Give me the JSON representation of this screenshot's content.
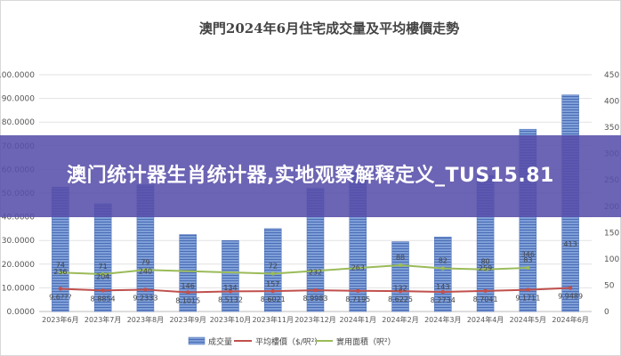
{
  "overlay": {
    "text": "澳门统计器生肖统计器,实地观察解释定义_TUS15.81"
  },
  "chart_data": {
    "type": "bar",
    "title": "澳門2024年6月住宅成交量及平均樓價走勢",
    "categories": [
      "2023年6月",
      "2023年7月",
      "2023年8月",
      "2023年9月",
      "2023年10月",
      "2023年11月",
      "2023年12月",
      "2024年1月",
      "2024年2月",
      "2024年3月",
      "2024年4月",
      "2024年5月",
      "2024年6月"
    ],
    "left_axis": {
      "min": 0,
      "max": 100,
      "step": 10,
      "tick_labels": [
        "0.0000",
        "10.0000",
        "20.0000",
        "30.0000",
        "40.0000",
        "50.0000",
        "60.0000",
        "70.0000",
        "80.0000",
        "90.0000",
        "100.0000"
      ]
    },
    "right_axis": {
      "min": 0,
      "max": 450,
      "step": 50,
      "tick_labels": [
        "0",
        "50",
        "100",
        "150",
        "200",
        "250",
        "300",
        "350",
        "400",
        "450"
      ]
    },
    "series": [
      {
        "name": "成交量",
        "type": "bar",
        "axis": "left",
        "color": "#5b7fc6",
        "values": [
          52.5,
          45.5,
          53.5,
          32.5,
          30,
          35,
          52,
          58.5,
          29.5,
          31.5,
          57.5,
          77,
          91.5
        ],
        "labels": [
          "236",
          "204",
          "240",
          "146",
          "134",
          "157",
          "232",
          "263",
          "132",
          "143",
          "259",
          "346",
          "413"
        ]
      },
      {
        "name": "平均樓價（$/呎²）",
        "type": "line",
        "axis": "left",
        "color": "#c0504d",
        "values": [
          9.6,
          8.8854,
          9.2333,
          8.1015,
          8.5132,
          8.6021,
          8.9983,
          8.7195,
          8.6225,
          8.2734,
          8.7041,
          9.1711,
          9.9489
        ],
        "labels": [
          "9.6???",
          "8.8854",
          "9.2333",
          "8.1015",
          "8.5132",
          "8.6021",
          "8.9983",
          "8.7195",
          "8.6225",
          "8.2734",
          "8.7041",
          "9.1711",
          "9.9489"
        ]
      },
      {
        "name": "實用面積（呎²）",
        "type": "line",
        "axis": "right",
        "color": "#9bbb59",
        "values": [
          74,
          71,
          79,
          null,
          null,
          72,
          null,
          null,
          88,
          82,
          80,
          83,
          null
        ],
        "labels": [
          "74",
          "71",
          "79",
          "",
          "",
          "72",
          "",
          "",
          "88",
          "82",
          "80",
          "83",
          ""
        ]
      }
    ],
    "legend_position": "bottom",
    "grid": true
  }
}
